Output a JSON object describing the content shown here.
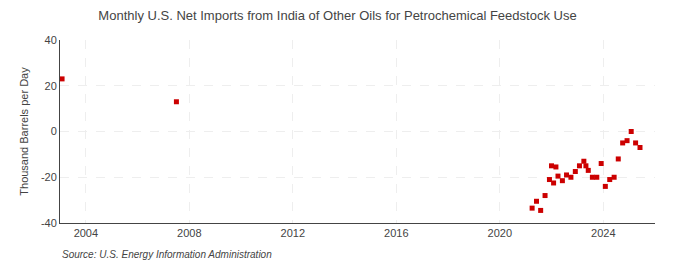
{
  "chart_data": {
    "type": "scatter",
    "title": "Monthly U.S. Net Imports from India of Other Oils for Petrochemical Feedstock Use",
    "ylabel": "Thousand Barrels per Day",
    "annotations": [
      "Source: U.S. Energy Information Administration"
    ],
    "color": "#cc0000",
    "marker": "square",
    "grid": true,
    "xlim": [
      2003.0,
      2026.0
    ],
    "xticks": [
      2004,
      2008,
      2012,
      2016,
      2020,
      2024
    ],
    "ylim": [
      -40,
      40
    ],
    "yticks": [
      -40,
      -20,
      0,
      20,
      40
    ],
    "x": [
      2003.08,
      2007.5,
      2021.25,
      2021.42,
      2021.58,
      2021.75,
      2021.92,
      2022.08,
      2022.25,
      2022.42,
      2022.58,
      2022.75,
      2022.92,
      2023.08,
      2023.25,
      2023.42,
      2023.58,
      2023.75,
      2023.92,
      2024.08,
      2024.25,
      2024.42,
      2024.58,
      2024.75,
      2024.92,
      2025.08,
      2025.25,
      2025.42,
      2022.0,
      2022.17,
      2023.33
    ],
    "values": [
      23.0,
      13.0,
      -33.5,
      -30.5,
      -34.5,
      -28.0,
      -21.0,
      -22.5,
      -19.5,
      -21.5,
      -19.0,
      -20.0,
      -17.5,
      -15.0,
      -13.0,
      -17.0,
      -20.0,
      -20.0,
      -14.0,
      -24.0,
      -21.0,
      -20.0,
      -12.0,
      -5.0,
      -4.0,
      0.0,
      -5.0,
      -7.0,
      -15.0,
      -15.5,
      -15.0
    ]
  }
}
